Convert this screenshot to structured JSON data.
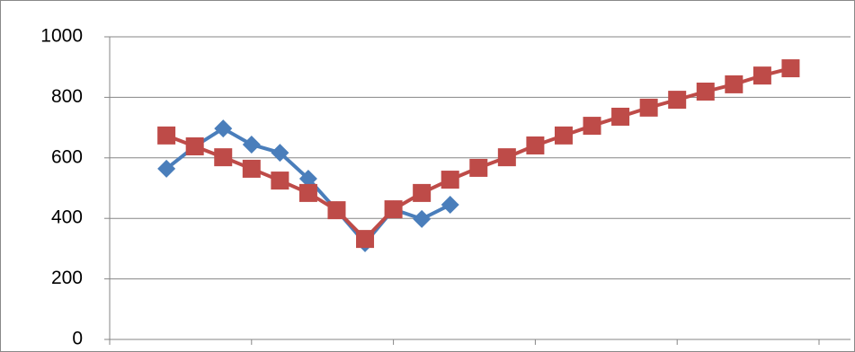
{
  "chart_data": {
    "type": "line",
    "series": [
      {
        "color": "#4a7ebb",
        "marker": "diamond",
        "x": [
          2,
          3,
          4,
          5,
          6,
          7,
          8,
          9,
          10,
          11,
          12
        ],
        "values": [
          564,
          638,
          697,
          644,
          617,
          531,
          427,
          318,
          430,
          398,
          445
        ]
      },
      {
        "color": "#be4b48",
        "marker": "square",
        "x": [
          2,
          3,
          4,
          5,
          6,
          7,
          8,
          9,
          10,
          11,
          12,
          13,
          14,
          15,
          16,
          17,
          18,
          19,
          20,
          21,
          22,
          23,
          24
        ],
        "values": [
          674,
          638,
          602,
          564,
          525,
          484,
          427,
          332,
          430,
          484,
          528,
          567,
          602,
          641,
          674,
          706,
          736,
          766,
          792,
          819,
          843,
          872,
          896
        ]
      }
    ],
    "xlim": [
      0,
      25
    ],
    "xticks": [
      0,
      5,
      10,
      15,
      20,
      25
    ],
    "ylim": [
      0,
      1000
    ],
    "yticks": [
      0,
      200,
      400,
      600,
      800,
      1000
    ],
    "grid": true
  }
}
